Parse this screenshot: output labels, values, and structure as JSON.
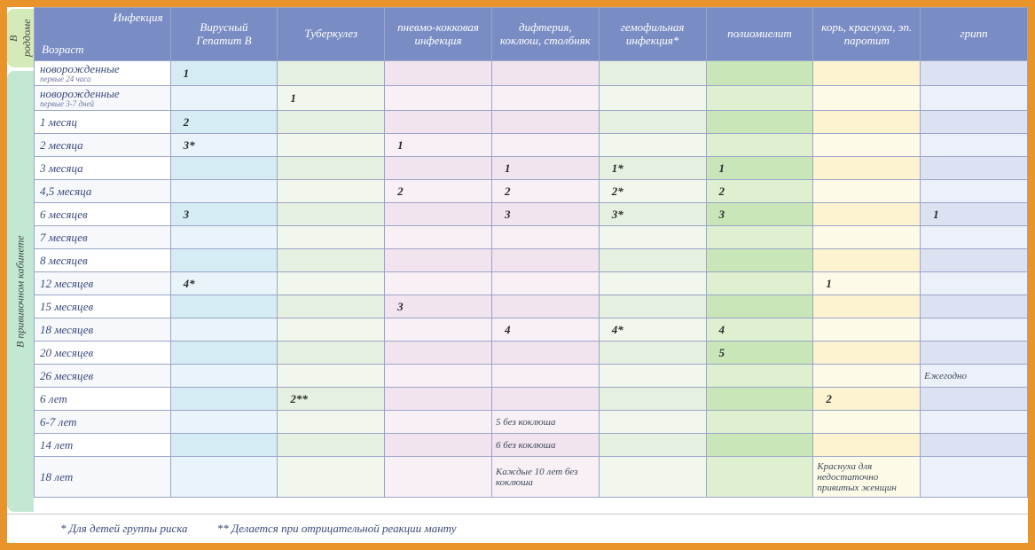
{
  "header": {
    "cornerTop": "Инфекция",
    "cornerBottom": "Возраст",
    "cols": [
      "Вирусный Гепатит В",
      "Туберкулез",
      "пневмо-кокковая инфекция",
      "дифтерия, коклюш, столбняк",
      "гемофильная инфекция*",
      "полиомиелит",
      "корь, краснуха, эп. паротит",
      "грипп"
    ]
  },
  "sideTabs": {
    "a": "В роддоме",
    "b": "В прививочном кабинете"
  },
  "palette": {
    "frame": "#e8942b",
    "headerBg": "#7a8cc4",
    "headerFg": "#ffffff",
    "grid": "#9ba5c8",
    "ageText": "#3a4a7a",
    "tabA": "#d4eab8",
    "tabB": "#c2e8d4",
    "cols": [
      "#d6ecf5",
      "#e6f0e0",
      "#f2e4ee",
      "#f2e4ee",
      "#e6f0e0",
      "#c8e6b8",
      "#fdf3d0",
      "#dce2f2"
    ]
  },
  "rows": [
    {
      "age": "новорожденные",
      "sub": "первые 24 часа",
      "v": [
        "1",
        "",
        "",
        "",
        "",
        "",
        "",
        ""
      ]
    },
    {
      "age": "новорожденные",
      "sub": "первые 3-7 дней",
      "v": [
        "",
        "1",
        "",
        "",
        "",
        "",
        "",
        ""
      ]
    },
    {
      "age": "1 месяц",
      "v": [
        "2",
        "",
        "",
        "",
        "",
        "",
        "",
        ""
      ]
    },
    {
      "age": "2 месяца",
      "v": [
        "3*",
        "",
        "1",
        "",
        "",
        "",
        "",
        ""
      ]
    },
    {
      "age": "3 месяца",
      "v": [
        "",
        "",
        "",
        "1",
        "1*",
        "1",
        "",
        ""
      ]
    },
    {
      "age": "4,5 месяца",
      "v": [
        "",
        "",
        "2",
        "2",
        "2*",
        "2",
        "",
        ""
      ]
    },
    {
      "age": "6 месяцев",
      "v": [
        "3",
        "",
        "",
        "3",
        "3*",
        "3",
        "",
        "1"
      ]
    },
    {
      "age": "7 месяцев",
      "v": [
        "",
        "",
        "",
        "",
        "",
        "",
        "",
        ""
      ]
    },
    {
      "age": "8 месяцев",
      "v": [
        "",
        "",
        "",
        "",
        "",
        "",
        "",
        ""
      ]
    },
    {
      "age": "12 месяцев",
      "v": [
        "4*",
        "",
        "",
        "",
        "",
        "",
        "1",
        ""
      ]
    },
    {
      "age": "15 месяцев",
      "v": [
        "",
        "",
        "3",
        "",
        "",
        "",
        "",
        ""
      ]
    },
    {
      "age": "18 месяцев",
      "v": [
        "",
        "",
        "",
        "4",
        "4*",
        "4",
        "",
        ""
      ]
    },
    {
      "age": "20 месяцев",
      "v": [
        "",
        "",
        "",
        "",
        "",
        "5",
        "",
        ""
      ]
    },
    {
      "age": "26 месяцев",
      "v": [
        "",
        "",
        "",
        "",
        "",
        "",
        "",
        "Ежегодно"
      ]
    },
    {
      "age": "6 лет",
      "v": [
        "",
        "2**",
        "",
        "",
        "",
        "",
        "2",
        ""
      ]
    },
    {
      "age": "6-7 лет",
      "v": [
        "",
        "",
        "",
        "5 без коклюша",
        "",
        "",
        "",
        ""
      ]
    },
    {
      "age": "14 лет",
      "v": [
        "",
        "",
        "",
        "6 без коклюша",
        "",
        "",
        "",
        ""
      ]
    },
    {
      "age": "18 лет",
      "tall": true,
      "v": [
        "",
        "",
        "",
        "Каждые 10 лет без коклюша",
        "",
        "",
        "Краснуха для недостаточно привитых женщин",
        ""
      ]
    }
  ],
  "footnotes": {
    "a": "* Для детей группы риска",
    "b": "** Делается при отрицательной реакции манту"
  }
}
